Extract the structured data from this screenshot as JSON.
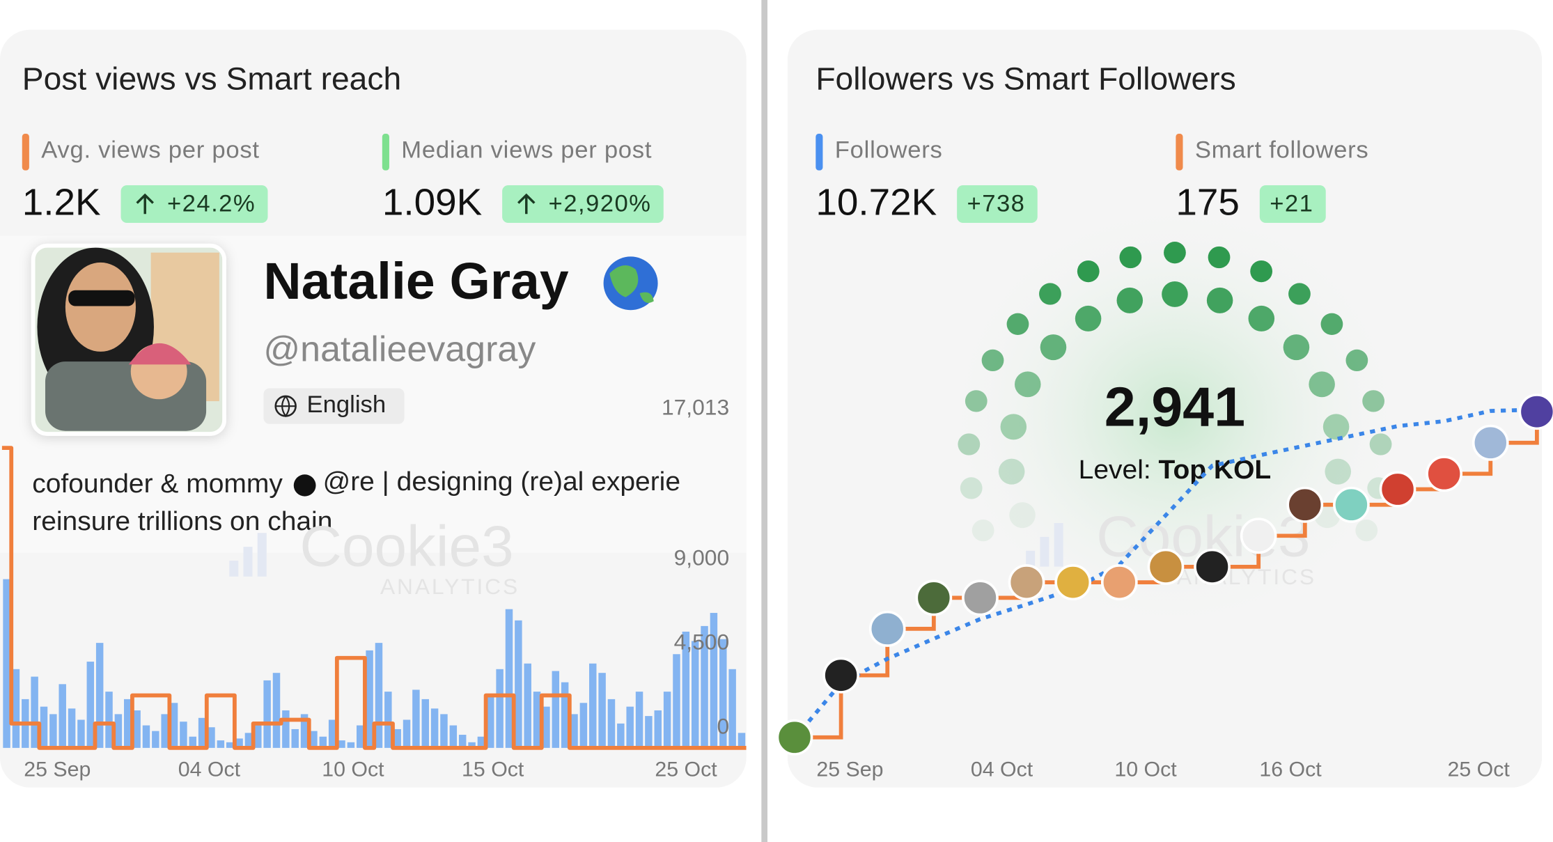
{
  "post_views": {
    "title": "Post views vs Smart reach",
    "metrics": [
      {
        "label": "Avg. views per post",
        "value": "1.2K",
        "change": "+24.2%",
        "color": "#f08a4b"
      },
      {
        "label": "Median views per post",
        "value": "1.09K",
        "change": "+2,920%",
        "color": "#7ee08f"
      }
    ],
    "profile": {
      "name": "Natalie Gray",
      "handle": "@natalieevagray",
      "language": "English",
      "bio_line1_start": "cofounder & mommy",
      "bio_line1_end": "@re | designing (re)al experie",
      "bio_line2": "reinsure trillions on chain"
    },
    "watermark": {
      "brand": "Cookie3",
      "sub": "ANALYTICS"
    },
    "chart": {
      "type": "bar",
      "x_labels": [
        "25 Sep",
        "04 Oct",
        "10 Oct",
        "15 Oct",
        "25 Oct"
      ],
      "ylim": [
        0,
        17013
      ],
      "yticks": [
        {
          "value": 17013,
          "label": "17,013"
        },
        {
          "value": 9000,
          "label": "9,000"
        },
        {
          "value": 4500,
          "label": "4,500"
        },
        0
      ],
      "views": {
        "color": "#6fa8f0",
        "values": [
          9000,
          4200,
          2600,
          3800,
          2200,
          1800,
          3400,
          2100,
          1500,
          4600,
          5600,
          3000,
          1800,
          2600,
          2000,
          1200,
          900,
          1800,
          2400,
          1400,
          600,
          1600,
          1100,
          400,
          300,
          500,
          800,
          1200,
          3600,
          4000,
          2000,
          1000,
          1800,
          900,
          600,
          1500,
          400,
          300,
          1200,
          5200,
          5600,
          3000,
          1000,
          1500,
          3100,
          2600,
          2100,
          1800,
          1200,
          700,
          300,
          600,
          2800,
          4200,
          7400,
          6800,
          4500,
          3000,
          2200,
          4100,
          3500,
          1800,
          2400,
          4500,
          4000,
          2600,
          1300,
          2200,
          3000,
          1700,
          2000,
          3000,
          5000,
          6200,
          5700,
          6500,
          7200,
          5800,
          4200,
          800
        ]
      },
      "smart_reach": {
        "color": "#f07f3c",
        "values": [
          16000,
          1300,
          1300,
          1300,
          0,
          0,
          0,
          0,
          0,
          0,
          1300,
          1300,
          0,
          0,
          2800,
          2800,
          2800,
          2800,
          0,
          0,
          0,
          0,
          2800,
          2800,
          2800,
          0,
          0,
          1300,
          1300,
          1300,
          1500,
          1500,
          1500,
          0,
          0,
          0,
          4800,
          4800,
          4800,
          0,
          1300,
          1300,
          0,
          0,
          0,
          0,
          0,
          0,
          0,
          0,
          0,
          0,
          2800,
          2800,
          2800,
          0,
          0,
          0,
          2800,
          2800,
          2800,
          0,
          0,
          0,
          0,
          0,
          0,
          0,
          0,
          0,
          0,
          0,
          0,
          0,
          0,
          0,
          0,
          0,
          0,
          0
        ]
      }
    }
  },
  "followers": {
    "title": "Followers vs Smart Followers",
    "metrics": [
      {
        "label": "Followers",
        "value": "10.72K",
        "change": "+738",
        "color": "#4a90f0"
      },
      {
        "label": "Smart followers",
        "value": "175",
        "change": "+21",
        "color": "#f08a4b"
      }
    ],
    "score": {
      "value": "2,941",
      "level_label": "Level:",
      "level": "Top KOL"
    },
    "watermark": {
      "brand": "Cookie3",
      "sub": "ANALYTICS"
    },
    "chart": {
      "type": "line",
      "x_labels": [
        "25 Sep",
        "04 Oct",
        "10 Oct",
        "16 Oct",
        "25 Oct"
      ],
      "followers": {
        "color": "#3b86e8",
        "ylim": [
          9950,
          10750
        ],
        "values": [
          9983,
          10106,
          10161,
          10206,
          10250,
          10283,
          10317,
          10372,
          10483,
          10594,
          10617,
          10639,
          10661,
          10683,
          10694,
          10717,
          10720
        ]
      },
      "smart_followers": {
        "color": "#f07f3c",
        "ylim": [
          153,
          176
        ],
        "values": [
          154,
          158,
          161,
          163,
          163,
          164,
          164,
          164,
          165,
          165,
          167,
          169,
          169,
          170,
          171,
          173,
          175
        ]
      }
    }
  }
}
